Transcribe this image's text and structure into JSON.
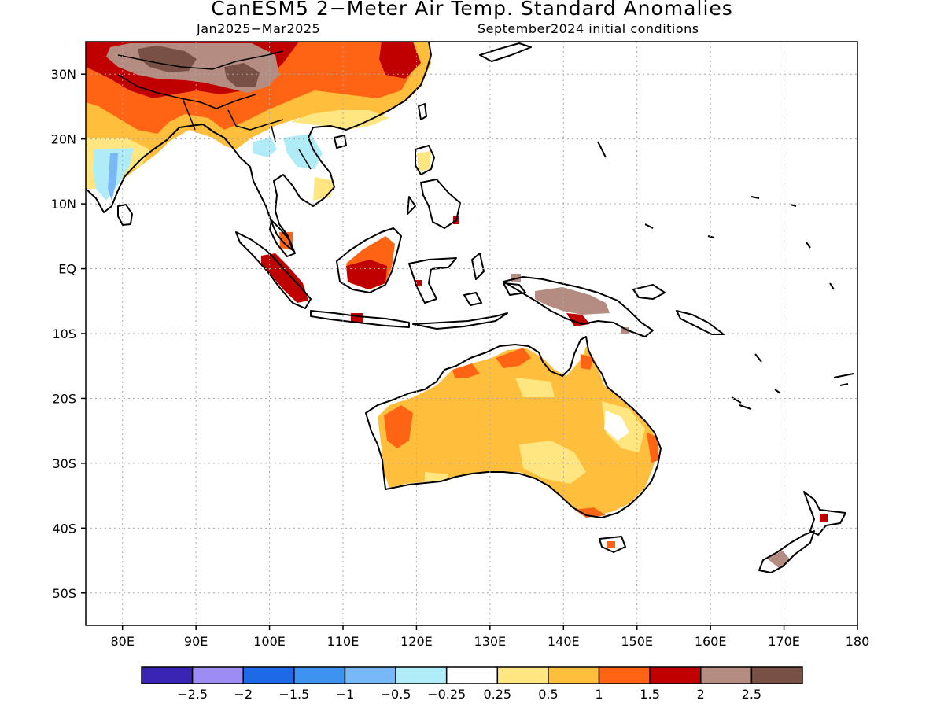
{
  "title": "CanESM5 2−Meter Air Temp. Standard Anomalies",
  "subtitle_left": "Jan2025−Mar2025",
  "subtitle_right": "September2024 initial conditions",
  "map": {
    "lon_range": [
      75,
      180
    ],
    "lat_range": [
      -55,
      35
    ],
    "lat_ticks": [
      {
        "value": 30,
        "label": "30N"
      },
      {
        "value": 20,
        "label": "20N"
      },
      {
        "value": 10,
        "label": "10N"
      },
      {
        "value": 0,
        "label": "EQ"
      },
      {
        "value": -10,
        "label": "10S"
      },
      {
        "value": -20,
        "label": "20S"
      },
      {
        "value": -30,
        "label": "30S"
      },
      {
        "value": -40,
        "label": "40S"
      },
      {
        "value": -50,
        "label": "50S"
      }
    ],
    "lon_ticks": [
      {
        "value": 80,
        "label": "80E"
      },
      {
        "value": 90,
        "label": "90E"
      },
      {
        "value": 100,
        "label": "100E"
      },
      {
        "value": 110,
        "label": "110E"
      },
      {
        "value": 120,
        "label": "120E"
      },
      {
        "value": 130,
        "label": "130E"
      },
      {
        "value": 140,
        "label": "140E"
      },
      {
        "value": 150,
        "label": "150E"
      },
      {
        "value": 160,
        "label": "160E"
      },
      {
        "value": 170,
        "label": "170E"
      },
      {
        "value": 180,
        "label": "180"
      }
    ],
    "gridlines": "dotted"
  },
  "colorbar": {
    "colors": [
      "#3a24b4",
      "#9c8cf4",
      "#1e6ae6",
      "#3c94f0",
      "#78b8f8",
      "#b0ecf8",
      "#ffffff",
      "#ffe680",
      "#ffbe3c",
      "#ff6414",
      "#c00000",
      "#b48c82",
      "#785046"
    ],
    "labels": [
      "−2.5",
      "−2",
      "−1.5",
      "−1",
      "−0.5",
      "−0.25",
      "0.25",
      "0.5",
      "1",
      "1.5",
      "2",
      "2.5"
    ]
  },
  "anomaly_regions": [
    {
      "name": "tibet-plateau",
      "level": 2.5
    },
    {
      "name": "china-south",
      "level": 1.5
    },
    {
      "name": "india-north",
      "level": 1
    },
    {
      "name": "india-west",
      "level": -0.5
    },
    {
      "name": "indochina",
      "level": -0.25
    },
    {
      "name": "borneo",
      "level": 2
    },
    {
      "name": "sumatra",
      "level": 2
    },
    {
      "name": "new-guinea",
      "level": 2.5
    },
    {
      "name": "australia",
      "level": 1
    },
    {
      "name": "australia-north-coast",
      "level": 1.5
    },
    {
      "name": "australia-southeast-interior",
      "level": 0.5
    },
    {
      "name": "new-zealand-south",
      "level": 2.5
    }
  ]
}
